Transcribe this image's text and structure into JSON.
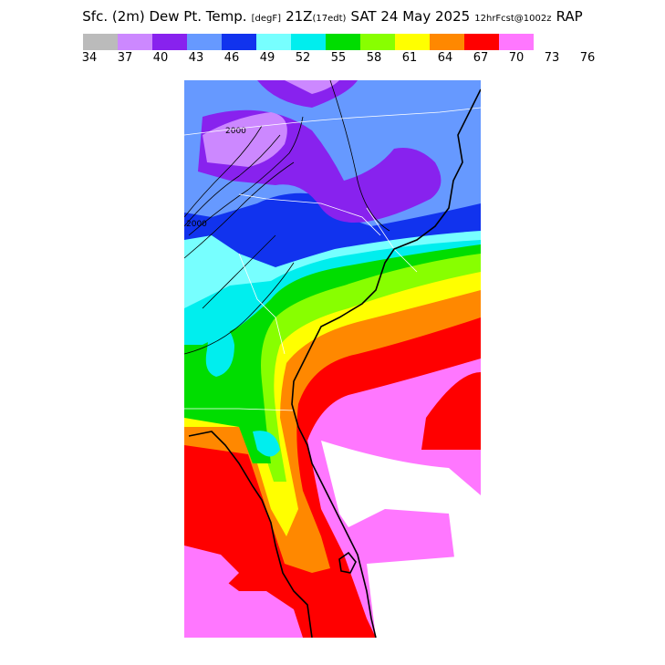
{
  "header": {
    "title_main": "Sfc. (2m) Dew Pt. Temp.",
    "title_units": "[degF]",
    "title_valid": "21Z",
    "title_local": "(17edt)",
    "title_date": "SAT 24 May 2025",
    "title_run": "12hrFcst@1002z",
    "title_model": "RAP"
  },
  "legend": {
    "colors": [
      "#bbbbbb",
      "#cc88ff",
      "#8822ee",
      "#6699ff",
      "#1133ee",
      "#77ffff",
      "#00eeee",
      "#00dd00",
      "#88ff00",
      "#ffff00",
      "#ff8800",
      "#ff0000",
      "#ff77ff"
    ],
    "ticks": [
      "34",
      "37",
      "40",
      "43",
      "46",
      "49",
      "52",
      "55",
      "58",
      "61",
      "64",
      "67",
      "70",
      "73",
      "76"
    ]
  },
  "map": {
    "contour_labels": [
      "2000",
      "2000"
    ]
  }
}
